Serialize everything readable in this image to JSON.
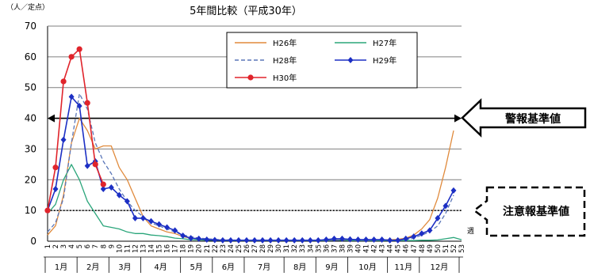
{
  "chart_data": {
    "type": "line",
    "title": "5年間比較（平成30年）",
    "ylabel": "（人／定点）",
    "xlabel": "週",
    "ylim": [
      0,
      70
    ],
    "yticks": [
      0,
      10,
      20,
      30,
      40,
      50,
      60,
      70
    ],
    "x": [
      1,
      2,
      3,
      4,
      5,
      6,
      7,
      8,
      9,
      10,
      11,
      12,
      13,
      14,
      15,
      16,
      17,
      18,
      19,
      20,
      21,
      22,
      23,
      24,
      25,
      26,
      27,
      28,
      29,
      30,
      31,
      32,
      33,
      34,
      35,
      36,
      37,
      38,
      39,
      40,
      41,
      42,
      43,
      44,
      45,
      46,
      47,
      48,
      49,
      50,
      51,
      52,
      53
    ],
    "months": [
      {
        "label": "1月",
        "start": 1,
        "end": 5
      },
      {
        "label": "2月",
        "start": 5,
        "end": 9
      },
      {
        "label": "3月",
        "start": 9,
        "end": 13
      },
      {
        "label": "4月",
        "start": 13,
        "end": 18
      },
      {
        "label": "5月",
        "start": 18,
        "end": 22
      },
      {
        "label": "6月",
        "start": 22,
        "end": 26
      },
      {
        "label": "7月",
        "start": 26,
        "end": 31
      },
      {
        "label": "8月",
        "start": 31,
        "end": 35
      },
      {
        "label": "9月",
        "start": 35,
        "end": 39
      },
      {
        "label": "10月",
        "start": 39,
        "end": 44
      },
      {
        "label": "11月",
        "start": 44,
        "end": 48
      },
      {
        "label": "12月",
        "start": 48,
        "end": 53
      }
    ],
    "grid": true,
    "legend": "top-right",
    "series": [
      {
        "name": "H26年",
        "color": "#e08a3c",
        "style": "solid",
        "marker": "none",
        "values": [
          2,
          5,
          15,
          32,
          40,
          36,
          30,
          31,
          31,
          24,
          20,
          14,
          8,
          5,
          4,
          3,
          2.5,
          1.5,
          1,
          0.8,
          0.6,
          0.5,
          0.4,
          0.3,
          0.3,
          0.2,
          0.2,
          0.2,
          0.2,
          0.2,
          0.2,
          0.2,
          0.2,
          0.2,
          0.3,
          0.3,
          0.4,
          0.4,
          0.4,
          0.4,
          0.4,
          0.4,
          0.5,
          0.5,
          0.6,
          1,
          2,
          4,
          7,
          14,
          24,
          36,
          null
        ]
      },
      {
        "name": "H27年",
        "color": "#2aa57a",
        "style": "solid",
        "marker": "none",
        "values": [
          9,
          12,
          20,
          25,
          20,
          13,
          9,
          5,
          4.5,
          4,
          3,
          2.5,
          2.5,
          2,
          1.8,
          1.5,
          1,
          0.8,
          0.5,
          0.4,
          0.3,
          0.3,
          0.2,
          0.2,
          0.2,
          0.2,
          0.2,
          0.2,
          0.2,
          0.2,
          0.2,
          0.2,
          0.2,
          0.2,
          0.2,
          0.2,
          0.3,
          0.3,
          0.2,
          0.2,
          0.2,
          0.2,
          0.2,
          0.2,
          0.2,
          0.2,
          0.2,
          0.3,
          0.3,
          0.4,
          0.8,
          1.2,
          0.5
        ]
      },
      {
        "name": "H28年",
        "color": "#5a76b8",
        "style": "dashed",
        "marker": "none",
        "values": [
          3,
          6,
          14,
          32,
          48,
          43,
          32,
          26,
          22,
          17,
          13,
          10,
          8,
          6,
          5,
          4,
          3,
          2,
          1.5,
          1,
          0.8,
          0.6,
          0.5,
          0.4,
          0.3,
          0.3,
          0.3,
          0.3,
          0.3,
          0.3,
          0.3,
          0.3,
          0.3,
          0.3,
          0.3,
          0.3,
          0.3,
          0.3,
          0.3,
          0.3,
          0.3,
          0.3,
          0.3,
          0.3,
          0.3,
          0.5,
          1,
          2,
          3,
          5,
          9,
          15,
          null
        ]
      },
      {
        "name": "H29年",
        "color": "#1c2fc4",
        "style": "solid",
        "marker": "diamond",
        "values": [
          10,
          17,
          33,
          47,
          44,
          24.5,
          26,
          17,
          17.5,
          15,
          13,
          7.5,
          7.5,
          6.5,
          5.5,
          4.5,
          3.5,
          1.8,
          1,
          0.8,
          0.5,
          0.4,
          0.3,
          0.3,
          0.3,
          0.3,
          0.3,
          0.3,
          0.3,
          0.3,
          0.3,
          0.3,
          0.3,
          0.3,
          0.3,
          0.5,
          0.8,
          0.8,
          0.6,
          0.5,
          0.5,
          0.5,
          0.5,
          0.3,
          0.3,
          0.8,
          1.5,
          2.5,
          3.5,
          7.5,
          11.5,
          16.5,
          null
        ]
      },
      {
        "name": "H30年",
        "color": "#e0242b",
        "style": "solid",
        "marker": "circle",
        "values": [
          10,
          24,
          52,
          60,
          62.5,
          45,
          25,
          18.5,
          null,
          null,
          null,
          null,
          null,
          null,
          null,
          null,
          null,
          null,
          null,
          null,
          null,
          null,
          null,
          null,
          null,
          null,
          null,
          null,
          null,
          null,
          null,
          null,
          null,
          null,
          null,
          null,
          null,
          null,
          null,
          null,
          null,
          null,
          null,
          null,
          null,
          null,
          null,
          null,
          null,
          null,
          null,
          null,
          null
        ]
      }
    ],
    "thresholds": [
      {
        "name": "警報基準値",
        "value": 40,
        "style": "arrow"
      },
      {
        "name": "注意報基準値",
        "value": 10,
        "style": "dotted"
      }
    ]
  }
}
